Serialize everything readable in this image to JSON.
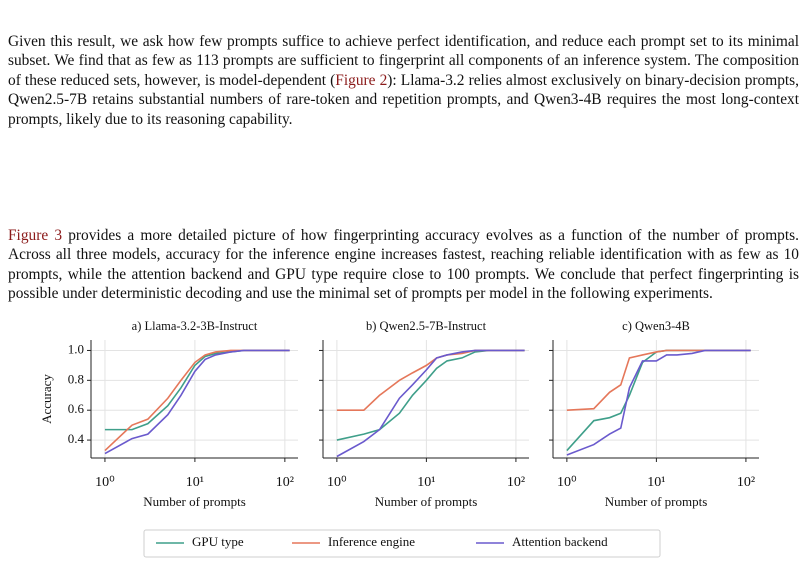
{
  "paragraphs": [
    [
      "Given this result, we ask how few prompts suffice to achieve perfect identification, and reduce each prompt set to its minimal subset. We find that as few as 113 prompts are sufficient to fingerprint all components of an inference system. The composition of these reduced sets, however, is model-dependent (",
      "Figure 2",
      "): Llama-3.2 relies almost exclusively on binary-decision prompts, Qwen2.5-7B retains substantial numbers of rare-token and repetition prompts, and Qwen3-4B requires the most long-context prompts, likely due to its reasoning capability."
    ],
    [
      "Figure 3",
      " provides a more detailed picture of how fingerprinting accuracy evolves as a function of the number of prompts. Across all three models, accuracy for the inference engine increases fastest, reaching reliable identification with as few as 10 prompts, while the attention backend and GPU type require close to 100 prompts. We conclude that perfect fingerprinting is possible under deterministic decoding and use the minimal set of prompts per model in the following experiments."
    ]
  ],
  "chart_data": [
    {
      "type": "line",
      "title": "a) Llama-3.2-3B-Instruct",
      "xlabel": "Number of prompts",
      "ylabel": "Accuracy",
      "xscale": "log",
      "grid": true,
      "legend": "bottom",
      "xlim": [
        0.7,
        140
      ],
      "xticks": [
        {
          "value": 1,
          "label": "10⁰"
        },
        {
          "value": 10,
          "label": "10¹"
        },
        {
          "value": 100,
          "label": "10²"
        }
      ],
      "ylim": [
        0.28,
        1.07
      ],
      "yticks": [
        0.4,
        0.6,
        0.8,
        {
          "value": 1,
          "label": "1.0"
        }
      ],
      "x": [
        1,
        2,
        3,
        5,
        7,
        10,
        13,
        17,
        25,
        35,
        50,
        70,
        113
      ],
      "series": [
        {
          "name": "GPU type",
          "color": "#3f9f8a",
          "values": [
            0.47,
            0.47,
            0.51,
            0.63,
            0.75,
            0.9,
            0.96,
            0.98,
            0.99,
            1,
            1,
            1,
            1
          ]
        },
        {
          "name": "Inference engine",
          "color": "#e5775a",
          "values": [
            0.33,
            0.5,
            0.54,
            0.68,
            0.8,
            0.92,
            0.97,
            0.99,
            1,
            1,
            1,
            1,
            1
          ]
        },
        {
          "name": "Attention backend",
          "color": "#6a5acd",
          "values": [
            0.31,
            0.41,
            0.44,
            0.57,
            0.7,
            0.86,
            0.94,
            0.97,
            0.99,
            1,
            1,
            1,
            1
          ]
        }
      ]
    },
    {
      "type": "line",
      "title": "b) Qwen2.5-7B-Instruct",
      "xlabel": "Number of prompts",
      "xscale": "log",
      "grid": true,
      "xlim": [
        0.7,
        140
      ],
      "xticks": [
        {
          "value": 1,
          "label": "10⁰"
        },
        {
          "value": 10,
          "label": "10¹"
        },
        {
          "value": 100,
          "label": "10²"
        }
      ],
      "ylim": [
        0.28,
        1.07
      ],
      "x": [
        1,
        2,
        3,
        5,
        7,
        10,
        13,
        17,
        25,
        35,
        50,
        70,
        125
      ],
      "series": [
        {
          "name": "GPU type",
          "color": "#3f9f8a",
          "values": [
            0.4,
            0.44,
            0.47,
            0.58,
            0.7,
            0.8,
            0.88,
            0.93,
            0.95,
            0.99,
            1,
            1,
            1
          ]
        },
        {
          "name": "Inference engine",
          "color": "#e5775a",
          "values": [
            0.6,
            0.6,
            0.7,
            0.8,
            0.85,
            0.9,
            0.95,
            0.97,
            0.98,
            1,
            1,
            1,
            1
          ]
        },
        {
          "name": "Attention backend",
          "color": "#6a5acd",
          "values": [
            0.29,
            0.39,
            0.47,
            0.68,
            0.77,
            0.87,
            0.95,
            0.97,
            0.99,
            1,
            1,
            1,
            1
          ]
        }
      ]
    },
    {
      "type": "line",
      "title": "c) Qwen3-4B",
      "xlabel": "Number of prompts",
      "xscale": "log",
      "grid": true,
      "xlim": [
        0.7,
        140
      ],
      "xticks": [
        {
          "value": 1,
          "label": "10⁰"
        },
        {
          "value": 10,
          "label": "10¹"
        },
        {
          "value": 100,
          "label": "10²"
        }
      ],
      "ylim": [
        0.28,
        1.07
      ],
      "x": [
        1,
        2,
        3,
        4,
        5,
        7,
        10,
        13,
        17,
        25,
        35,
        50,
        70,
        113
      ],
      "series": [
        {
          "name": "GPU type",
          "color": "#3f9f8a",
          "values": [
            0.33,
            0.53,
            0.55,
            0.58,
            0.7,
            0.92,
            0.99,
            1,
            1,
            1,
            1,
            1,
            1,
            1
          ]
        },
        {
          "name": "Inference engine",
          "color": "#e5775a",
          "values": [
            0.6,
            0.61,
            0.72,
            0.77,
            0.95,
            0.97,
            0.99,
            1,
            1,
            1,
            1,
            1,
            1,
            1
          ]
        },
        {
          "name": "Attention backend",
          "color": "#6a5acd",
          "values": [
            0.3,
            0.37,
            0.44,
            0.48,
            0.75,
            0.93,
            0.93,
            0.97,
            0.97,
            0.98,
            1,
            1,
            1,
            1
          ]
        }
      ]
    }
  ]
}
